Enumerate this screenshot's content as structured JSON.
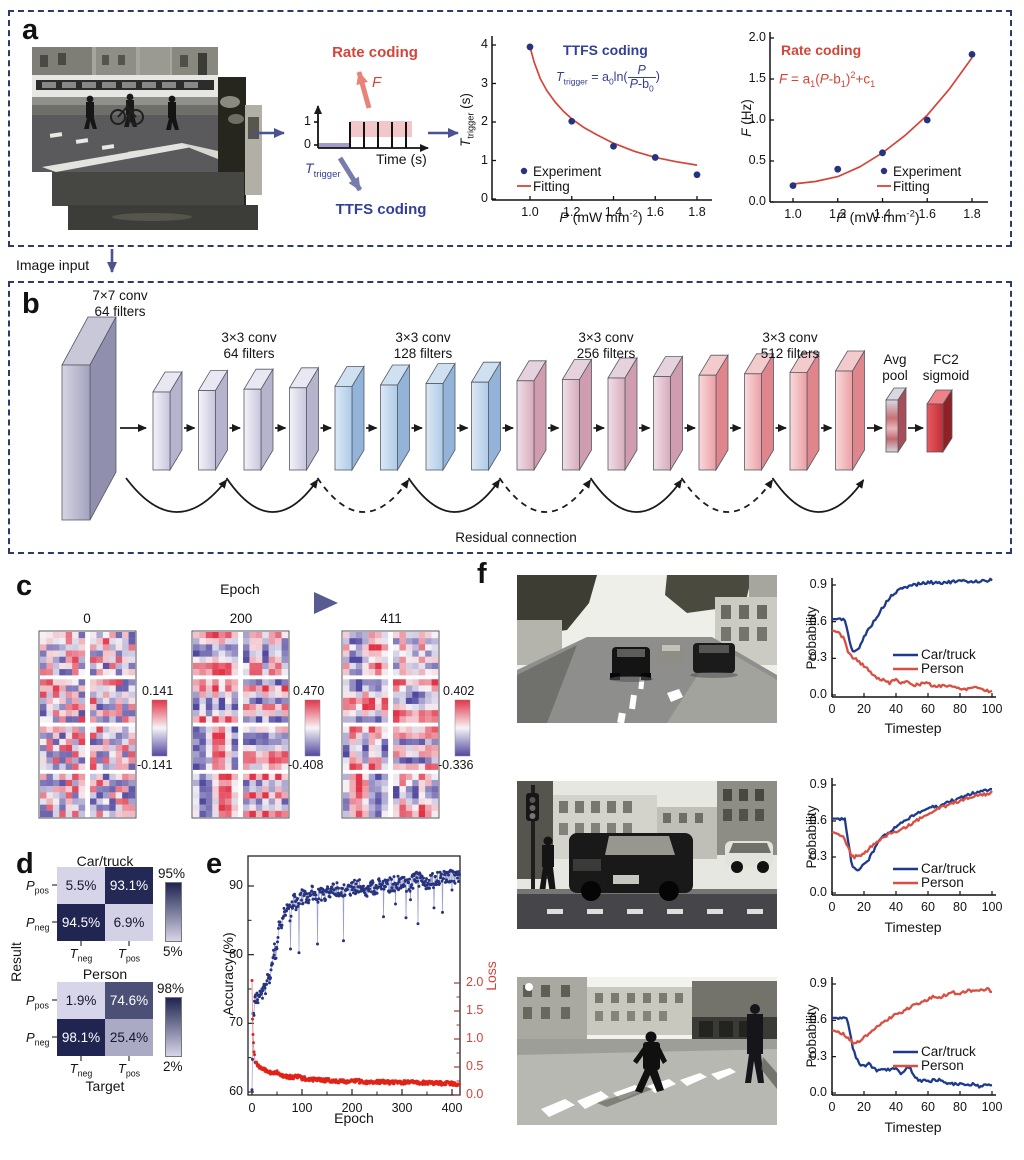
{
  "colors": {
    "border": "#2e3a67",
    "navy": "#27337e",
    "navyText": "#32409a",
    "red": "#d54438",
    "lightRed": "#e8837a",
    "lightNavyArrow": "#767cab",
    "pinkBand": "#f3c6ca",
    "purpleBand": "#a29cc9",
    "heatPos": "#e23448",
    "heatNeg": "#5148a0",
    "heatMid": "#f6f4f7",
    "cmDark": "#1f2451",
    "cmLight": "#d7d5e9"
  },
  "panel_a": {
    "label": "a",
    "rate_coding": "Rate coding",
    "f_sym": "*F*",
    "ttfs_coding": "TTFS coding",
    "t_trigger": "*T*_{trigger}",
    "time_axis": "Time (s)",
    "tick1": "1",
    "tick0": "0",
    "image_input": "Image input"
  },
  "panel_b": {
    "label": "b",
    "conv1_l1": "7×7 conv",
    "conv1_l2": "64 filters",
    "stages": [
      {
        "l1": "3×3 conv",
        "l2": "64 filters"
      },
      {
        "l1": "3×3 conv",
        "l2": "128 filters"
      },
      {
        "l1": "3×3 conv",
        "l2": "256 filters"
      },
      {
        "l1": "3×3 conv",
        "l2": "512 filters"
      }
    ],
    "avg_l1": "Avg",
    "avg_l2": "pool",
    "fc2_l1": "FC2",
    "fc2_l2": "sigmoid",
    "residual": "Residual connection"
  },
  "panel_c": {
    "label": "c",
    "epoch_label": "Epoch",
    "grids": [
      {
        "epoch": "0",
        "cb_top": "0.141",
        "cb_bottom": "-0.141",
        "seed": 11,
        "mode": "noise"
      },
      {
        "epoch": "200",
        "cb_top": "0.470",
        "cb_bottom": "-0.408",
        "seed": 23,
        "mode": "stripes"
      },
      {
        "epoch": "411",
        "cb_top": "0.402",
        "cb_bottom": "-0.336",
        "seed": 47,
        "mode": "stripes"
      }
    ]
  },
  "panel_d": {
    "label": "d",
    "ylabel": "Result",
    "xlabel": "Target",
    "row_labels": [
      "*P*_{pos}",
      "*P*_{neg}"
    ],
    "col_labels": [
      "*T*_{neg}",
      "*T*_{pos}"
    ],
    "matrices": [
      {
        "title": "Car/truck",
        "cells": [
          [
            "5.5%",
            "93.1%"
          ],
          [
            "94.5%",
            "6.9%"
          ]
        ],
        "values": [
          [
            5.5,
            93.1
          ],
          [
            94.5,
            6.9
          ]
        ],
        "vmax": 95,
        "vmin": 5,
        "cb_top": "95%",
        "cb_bottom": "5%"
      },
      {
        "title": "Person",
        "cells": [
          [
            "1.9%",
            "74.6%"
          ],
          [
            "98.1%",
            "25.4%"
          ]
        ],
        "values": [
          [
            1.9,
            74.6
          ],
          [
            98.1,
            25.4
          ]
        ],
        "vmax": 98,
        "vmin": 2,
        "cb_top": "98%",
        "cb_bottom": "2%"
      }
    ]
  },
  "panel_e": {
    "label": "e"
  },
  "panel_f": {
    "label": "f"
  },
  "chart_data": [
    {
      "id": "ttfs_plot",
      "type": "scatter",
      "title": "TTFS coding",
      "formula_pre": "*T*_{trigger} = a_{0}ln(",
      "formula_num": "*P*",
      "formula_den": "*P*-b_{0}",
      "formula_post": ")",
      "xlabel": "*P* (mW mm^{-2})",
      "ylabel": "*T*_{trigger} (s)",
      "xticks": [
        "1.0",
        "1.2",
        "1.4",
        "1.6",
        "1.8"
      ],
      "yticks": [
        "4",
        "3",
        "2",
        "1",
        "0"
      ],
      "xlim": [
        1.0,
        1.8
      ],
      "ylim": [
        0,
        4
      ],
      "legend": [
        "Experiment",
        "Fitting"
      ],
      "experiment": [
        [
          1.0,
          3.95
        ],
        [
          1.2,
          2.02
        ],
        [
          1.4,
          1.37
        ],
        [
          1.6,
          1.08
        ],
        [
          1.8,
          0.63
        ]
      ],
      "fit": [
        [
          1.0,
          3.95
        ],
        [
          1.02,
          3.55
        ],
        [
          1.05,
          3.12
        ],
        [
          1.08,
          2.82
        ],
        [
          1.12,
          2.52
        ],
        [
          1.16,
          2.28
        ],
        [
          1.2,
          2.08
        ],
        [
          1.26,
          1.85
        ],
        [
          1.32,
          1.67
        ],
        [
          1.4,
          1.45
        ],
        [
          1.5,
          1.24
        ],
        [
          1.6,
          1.08
        ],
        [
          1.7,
          0.97
        ],
        [
          1.8,
          0.88
        ]
      ]
    },
    {
      "id": "rate_plot",
      "type": "scatter",
      "title": "Rate coding",
      "formula": "*F* = a_{1}(*P*-b_{1})^{2}+c_{1}",
      "xlabel": "*P* (mW mm^{-2})",
      "ylabel": "*F* (Hz)",
      "xticks": [
        "1.0",
        "1.2",
        "1.4",
        "1.6",
        "1.8"
      ],
      "yticks": [
        "2.0",
        "1.5",
        "1.0",
        "0.5",
        "0.0"
      ],
      "xlim": [
        1.0,
        1.8
      ],
      "ylim": [
        0,
        2
      ],
      "legend": [
        "Experiment",
        "Fitting"
      ],
      "experiment": [
        [
          1.0,
          0.2
        ],
        [
          1.2,
          0.4
        ],
        [
          1.4,
          0.6
        ],
        [
          1.6,
          1.0
        ],
        [
          1.8,
          1.8
        ]
      ],
      "fit": [
        [
          1.0,
          0.22
        ],
        [
          1.1,
          0.25
        ],
        [
          1.2,
          0.31
        ],
        [
          1.3,
          0.43
        ],
        [
          1.4,
          0.6
        ],
        [
          1.5,
          0.81
        ],
        [
          1.6,
          1.06
        ],
        [
          1.7,
          1.38
        ],
        [
          1.8,
          1.76
        ]
      ]
    },
    {
      "id": "training_curve",
      "type": "scatter",
      "xlabel": "Epoch",
      "ylabel_left": "Accuracy (%)",
      "ylabel_right": "Loss",
      "xticks": [
        "0",
        "100",
        "200",
        "300",
        "400"
      ],
      "yticks_left": [
        "60",
        "70",
        "80",
        "90"
      ],
      "yticks_right": [
        "0.0",
        "0.5",
        "1.0",
        "1.5",
        "2.0"
      ],
      "xlim": [
        0,
        415
      ],
      "ylim_left": [
        60,
        95
      ],
      "ylim_right": [
        0,
        2.15
      ],
      "accuracy_keypoints": [
        [
          0,
          60.5
        ],
        [
          2,
          71
        ],
        [
          5,
          72.5
        ],
        [
          8,
          74
        ],
        [
          12,
          73
        ],
        [
          16,
          75.5
        ],
        [
          20,
          74
        ],
        [
          24,
          76.5
        ],
        [
          28,
          75
        ],
        [
          32,
          77.5
        ],
        [
          36,
          76
        ],
        [
          40,
          79
        ],
        [
          44,
          81
        ],
        [
          48,
          79.5
        ],
        [
          52,
          83
        ],
        [
          56,
          85
        ],
        [
          60,
          84
        ],
        [
          64,
          86.5
        ],
        [
          70,
          87
        ],
        [
          76,
          86
        ],
        [
          82,
          88
        ],
        [
          90,
          87.5
        ],
        [
          100,
          88.5
        ],
        [
          110,
          88
        ],
        [
          120,
          89
        ],
        [
          135,
          88.5
        ],
        [
          150,
          89
        ],
        [
          170,
          89.5
        ],
        [
          190,
          89
        ],
        [
          210,
          90
        ],
        [
          230,
          89.5
        ],
        [
          250,
          90
        ],
        [
          270,
          90
        ],
        [
          290,
          90.5
        ],
        [
          310,
          90
        ],
        [
          330,
          91
        ],
        [
          350,
          90.5
        ],
        [
          370,
          91
        ],
        [
          390,
          91.5
        ],
        [
          405,
          91
        ],
        [
          415,
          91.5
        ]
      ],
      "loss_keypoints": [
        [
          0,
          2.05
        ],
        [
          1,
          1.35
        ],
        [
          2,
          1.08
        ],
        [
          4,
          0.78
        ],
        [
          6,
          0.62
        ],
        [
          10,
          0.56
        ],
        [
          15,
          0.5
        ],
        [
          20,
          0.47
        ],
        [
          26,
          0.44
        ],
        [
          32,
          0.42
        ],
        [
          40,
          0.38
        ],
        [
          48,
          0.41
        ],
        [
          56,
          0.36
        ],
        [
          64,
          0.34
        ],
        [
          72,
          0.33
        ],
        [
          80,
          0.31
        ],
        [
          90,
          0.34
        ],
        [
          100,
          0.3
        ],
        [
          115,
          0.28
        ],
        [
          130,
          0.27
        ],
        [
          150,
          0.26
        ],
        [
          170,
          0.25
        ],
        [
          190,
          0.24
        ],
        [
          210,
          0.25
        ],
        [
          230,
          0.23
        ],
        [
          250,
          0.24
        ],
        [
          270,
          0.23
        ],
        [
          290,
          0.22
        ],
        [
          310,
          0.23
        ],
        [
          330,
          0.22
        ],
        [
          350,
          0.22
        ],
        [
          370,
          0.21
        ],
        [
          390,
          0.21
        ],
        [
          405,
          0.2
        ],
        [
          415,
          0.2
        ]
      ]
    },
    {
      "id": "prob_plot_1",
      "type": "line",
      "ylabel": "Probability",
      "xlabel": "Timestep",
      "yticks": [
        "0.0",
        "0.3",
        "0.6",
        "0.9"
      ],
      "xticks": [
        "0",
        "20",
        "40",
        "60",
        "80",
        "100"
      ],
      "xlim": [
        0,
        100
      ],
      "ylim": [
        0,
        0.95
      ],
      "legend": [
        "Car/truck",
        "Person"
      ],
      "car": [
        [
          0,
          0.62
        ],
        [
          8,
          0.62
        ],
        [
          10,
          0.5
        ],
        [
          12,
          0.38
        ],
        [
          14,
          0.35
        ],
        [
          16,
          0.37
        ],
        [
          18,
          0.42
        ],
        [
          22,
          0.52
        ],
        [
          26,
          0.6
        ],
        [
          30,
          0.68
        ],
        [
          34,
          0.76
        ],
        [
          38,
          0.82
        ],
        [
          42,
          0.86
        ],
        [
          46,
          0.88
        ],
        [
          50,
          0.9
        ],
        [
          55,
          0.91
        ],
        [
          60,
          0.92
        ],
        [
          70,
          0.92
        ],
        [
          80,
          0.93
        ],
        [
          90,
          0.93
        ],
        [
          100,
          0.94
        ]
      ],
      "person": [
        [
          0,
          0.53
        ],
        [
          4,
          0.51
        ],
        [
          7,
          0.47
        ],
        [
          10,
          0.36
        ],
        [
          13,
          0.31
        ],
        [
          16,
          0.28
        ],
        [
          20,
          0.24
        ],
        [
          24,
          0.19
        ],
        [
          28,
          0.14
        ],
        [
          32,
          0.12
        ],
        [
          36,
          0.1
        ],
        [
          40,
          0.14
        ],
        [
          43,
          0.09
        ],
        [
          48,
          0.11
        ],
        [
          52,
          0.08
        ],
        [
          58,
          0.1
        ],
        [
          64,
          0.07
        ],
        [
          70,
          0.08
        ],
        [
          78,
          0.06
        ],
        [
          84,
          0.05
        ],
        [
          90,
          0.07
        ],
        [
          95,
          0.04
        ],
        [
          100,
          0.03
        ]
      ]
    },
    {
      "id": "prob_plot_2",
      "type": "line",
      "ylabel": "Probability",
      "xlabel": "Timestep",
      "yticks": [
        "0.0",
        "0.3",
        "0.6",
        "0.9"
      ],
      "xticks": [
        "0",
        "20",
        "40",
        "60",
        "80",
        "100"
      ],
      "xlim": [
        0,
        100
      ],
      "ylim": [
        0,
        0.95
      ],
      "legend": [
        "Car/truck",
        "Person"
      ],
      "car": [
        [
          0,
          0.62
        ],
        [
          8,
          0.62
        ],
        [
          10,
          0.45
        ],
        [
          12,
          0.25
        ],
        [
          14,
          0.2
        ],
        [
          16,
          0.2
        ],
        [
          18,
          0.21
        ],
        [
          20,
          0.24
        ],
        [
          23,
          0.28
        ],
        [
          26,
          0.35
        ],
        [
          30,
          0.44
        ],
        [
          34,
          0.49
        ],
        [
          38,
          0.53
        ],
        [
          42,
          0.57
        ],
        [
          46,
          0.6
        ],
        [
          50,
          0.64
        ],
        [
          55,
          0.68
        ],
        [
          60,
          0.71
        ],
        [
          63,
          0.73
        ],
        [
          66,
          0.71
        ],
        [
          70,
          0.75
        ],
        [
          75,
          0.77
        ],
        [
          80,
          0.79
        ],
        [
          85,
          0.82
        ],
        [
          90,
          0.84
        ],
        [
          95,
          0.85
        ],
        [
          100,
          0.87
        ]
      ],
      "person": [
        [
          0,
          0.51
        ],
        [
          4,
          0.49
        ],
        [
          7,
          0.48
        ],
        [
          10,
          0.38
        ],
        [
          12,
          0.32
        ],
        [
          14,
          0.3
        ],
        [
          16,
          0.31
        ],
        [
          18,
          0.3
        ],
        [
          20,
          0.33
        ],
        [
          24,
          0.38
        ],
        [
          28,
          0.43
        ],
        [
          32,
          0.46
        ],
        [
          36,
          0.49
        ],
        [
          40,
          0.51
        ],
        [
          45,
          0.54
        ],
        [
          50,
          0.58
        ],
        [
          55,
          0.62
        ],
        [
          60,
          0.66
        ],
        [
          65,
          0.69
        ],
        [
          70,
          0.72
        ],
        [
          75,
          0.75
        ],
        [
          80,
          0.77
        ],
        [
          85,
          0.79
        ],
        [
          90,
          0.81
        ],
        [
          95,
          0.82
        ],
        [
          100,
          0.84
        ]
      ]
    },
    {
      "id": "prob_plot_3",
      "type": "line",
      "ylabel": "Probability",
      "xlabel": "Timestep",
      "yticks": [
        "0.0",
        "0.3",
        "0.6",
        "0.9"
      ],
      "xticks": [
        "0",
        "20",
        "40",
        "60",
        "80",
        "100"
      ],
      "xlim": [
        0,
        100
      ],
      "ylim": [
        0,
        0.95
      ],
      "legend": [
        "Car/truck",
        "Person"
      ],
      "car": [
        [
          0,
          0.62
        ],
        [
          9,
          0.62
        ],
        [
          11,
          0.52
        ],
        [
          13,
          0.38
        ],
        [
          15,
          0.3
        ],
        [
          17,
          0.25
        ],
        [
          19,
          0.22
        ],
        [
          21,
          0.23
        ],
        [
          23,
          0.26
        ],
        [
          25,
          0.21
        ],
        [
          28,
          0.19
        ],
        [
          32,
          0.2
        ],
        [
          36,
          0.19
        ],
        [
          40,
          0.2
        ],
        [
          43,
          0.16
        ],
        [
          46,
          0.2
        ],
        [
          49,
          0.21
        ],
        [
          52,
          0.12
        ],
        [
          55,
          0.1
        ],
        [
          58,
          0.11
        ],
        [
          62,
          0.1
        ],
        [
          66,
          0.11
        ],
        [
          70,
          0.09
        ],
        [
          75,
          0.08
        ],
        [
          80,
          0.07
        ],
        [
          85,
          0.06
        ],
        [
          88,
          0.08
        ],
        [
          92,
          0.05
        ],
        [
          96,
          0.07
        ],
        [
          100,
          0.06
        ]
      ],
      "person": [
        [
          0,
          0.52
        ],
        [
          4,
          0.5
        ],
        [
          8,
          0.48
        ],
        [
          11,
          0.44
        ],
        [
          14,
          0.41
        ],
        [
          17,
          0.43
        ],
        [
          20,
          0.46
        ],
        [
          24,
          0.5
        ],
        [
          28,
          0.55
        ],
        [
          32,
          0.59
        ],
        [
          36,
          0.62
        ],
        [
          40,
          0.65
        ],
        [
          44,
          0.67
        ],
        [
          48,
          0.7
        ],
        [
          52,
          0.73
        ],
        [
          56,
          0.75
        ],
        [
          60,
          0.77
        ],
        [
          64,
          0.8
        ],
        [
          68,
          0.79
        ],
        [
          72,
          0.82
        ],
        [
          76,
          0.83
        ],
        [
          80,
          0.82
        ],
        [
          84,
          0.84
        ],
        [
          88,
          0.85
        ],
        [
          92,
          0.84
        ],
        [
          96,
          0.86
        ],
        [
          100,
          0.84
        ]
      ]
    }
  ]
}
